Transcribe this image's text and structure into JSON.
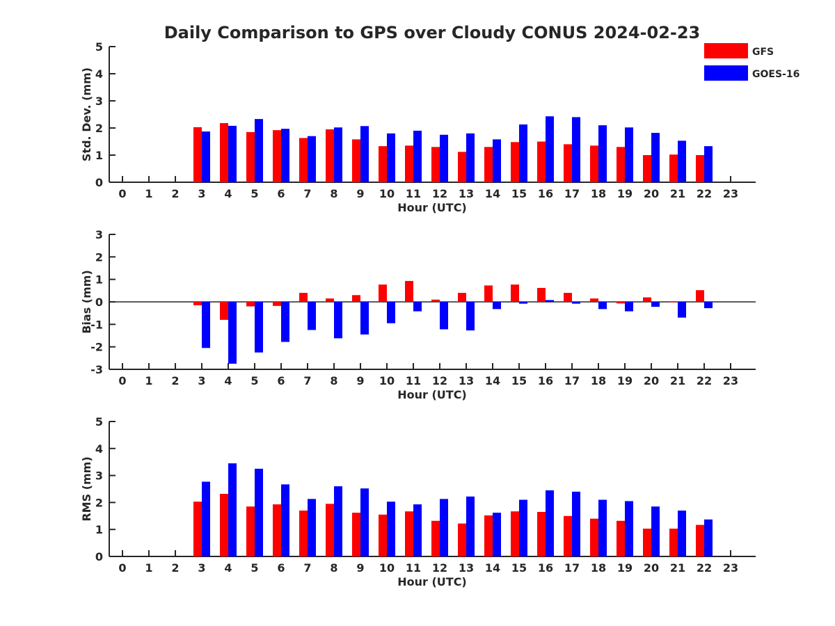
{
  "chart_data": {
    "type": "bar",
    "title": "Daily Comparison to GPS over Cloudy CONUS 2024-02-23",
    "legend": {
      "position": "top-right",
      "entries": [
        {
          "name": "GFS",
          "color": "#ff0000"
        },
        {
          "name": "GOES-16",
          "color": "#0000ff"
        }
      ]
    },
    "categories": [
      "0",
      "1",
      "2",
      "3",
      "4",
      "5",
      "6",
      "7",
      "8",
      "9",
      "10",
      "11",
      "12",
      "13",
      "14",
      "15",
      "16",
      "17",
      "18",
      "19",
      "20",
      "21",
      "22",
      "23"
    ],
    "panels": [
      {
        "id": "std",
        "ylabel": "Std. Dev. (mm)",
        "xlabel": "Hour (UTC)",
        "ylim": [
          0,
          5
        ],
        "yticks": [
          "0",
          "1",
          "2",
          "3",
          "4",
          "5"
        ],
        "series": [
          {
            "name": "GFS",
            "values": [
              null,
              null,
              null,
              2.03,
              2.18,
              1.85,
              1.92,
              1.63,
              1.95,
              1.58,
              1.33,
              1.35,
              1.3,
              1.12,
              1.3,
              1.48,
              1.5,
              1.4,
              1.35,
              1.3,
              1.0,
              1.02,
              1.0,
              null
            ]
          },
          {
            "name": "GOES-16",
            "values": [
              null,
              null,
              null,
              1.87,
              2.08,
              2.33,
              1.97,
              1.7,
              2.02,
              2.07,
              1.8,
              1.9,
              1.75,
              1.8,
              1.58,
              2.13,
              2.43,
              2.4,
              2.1,
              2.02,
              1.82,
              1.53,
              1.33,
              null
            ]
          }
        ]
      },
      {
        "id": "bias",
        "ylabel": "Bias (mm)",
        "xlabel": "Hour (UTC)",
        "ylim": [
          -3,
          3
        ],
        "yticks": [
          "-3",
          "-2",
          "-1",
          "0",
          "1",
          "2",
          "3"
        ],
        "series": [
          {
            "name": "GFS",
            "values": [
              null,
              null,
              null,
              -0.15,
              -0.8,
              -0.2,
              -0.18,
              0.4,
              0.15,
              0.3,
              0.77,
              0.93,
              0.1,
              0.4,
              0.73,
              0.77,
              0.62,
              0.4,
              0.15,
              -0.07,
              0.2,
              0.0,
              0.52,
              null
            ]
          },
          {
            "name": "GOES-16",
            "values": [
              null,
              null,
              null,
              -2.05,
              -2.75,
              -2.25,
              -1.78,
              -1.25,
              -1.62,
              -1.45,
              -0.95,
              -0.42,
              -1.22,
              -1.27,
              -0.32,
              -0.08,
              0.08,
              -0.08,
              -0.32,
              -0.42,
              -0.22,
              -0.7,
              -0.28,
              null
            ]
          }
        ]
      },
      {
        "id": "rms",
        "ylabel": "RMS (mm)",
        "xlabel": "Hour (UTC)",
        "ylim": [
          0,
          5
        ],
        "yticks": [
          "0",
          "1",
          "2",
          "3",
          "4",
          "5"
        ],
        "series": [
          {
            "name": "GFS",
            "values": [
              null,
              null,
              null,
              2.03,
              2.32,
              1.85,
              1.93,
              1.7,
              1.95,
              1.62,
              1.55,
              1.67,
              1.32,
              1.22,
              1.52,
              1.67,
              1.65,
              1.5,
              1.4,
              1.32,
              1.03,
              1.03,
              1.17,
              null
            ]
          },
          {
            "name": "GOES-16",
            "values": [
              null,
              null,
              null,
              2.77,
              3.45,
              3.25,
              2.67,
              2.13,
              2.6,
              2.52,
              2.03,
              1.93,
              2.13,
              2.22,
              1.62,
              2.1,
              2.45,
              2.4,
              2.1,
              2.05,
              1.85,
              1.7,
              1.37,
              null
            ]
          }
        ]
      }
    ]
  }
}
